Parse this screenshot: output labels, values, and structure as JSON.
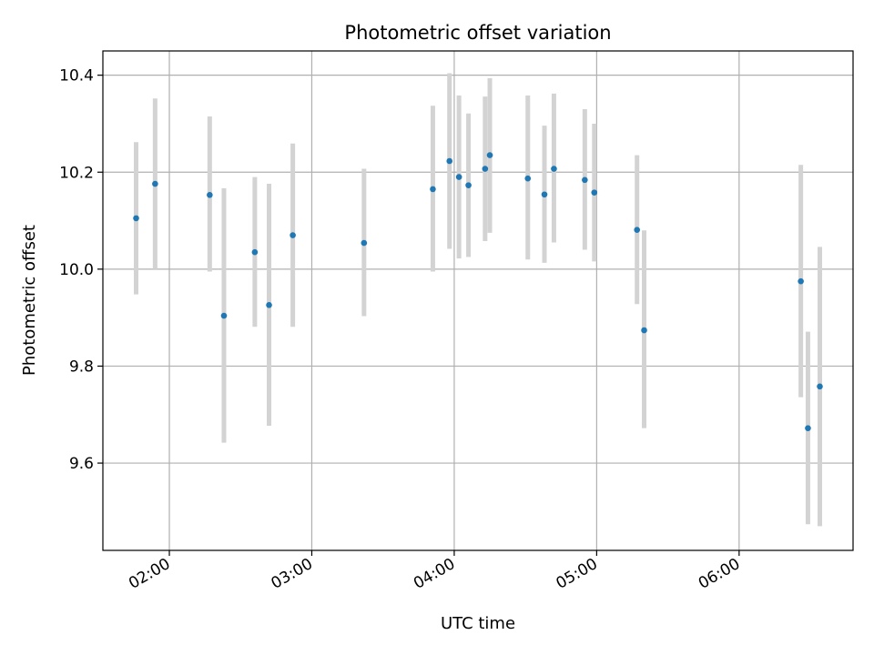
{
  "chart_data": {
    "type": "scatter",
    "title": "Photometric offset variation",
    "xlabel": "UTC time",
    "ylabel": "Photometric offset",
    "x_unit": "UTC hh:mm",
    "xlim": [
      "01:32",
      "06:48"
    ],
    "ylim": [
      9.42,
      10.45
    ],
    "x_ticks": [
      "02:00",
      "03:00",
      "04:00",
      "05:00",
      "06:00"
    ],
    "y_ticks": [
      9.6,
      9.8,
      10.0,
      10.2,
      10.4
    ],
    "grid": true,
    "colors": {
      "points": "#1f77b4",
      "error_bars": "#d3d3d3",
      "grid": "#b0b0b0"
    },
    "series": [
      {
        "points": [
          {
            "x": "01:46",
            "y": 10.105,
            "err_low": 9.948,
            "err_high": 10.262
          },
          {
            "x": "01:54",
            "y": 10.176,
            "err_low": 10.0,
            "err_high": 10.352
          },
          {
            "x": "02:17",
            "y": 10.153,
            "err_low": 9.995,
            "err_high": 10.315
          },
          {
            "x": "02:23",
            "y": 9.904,
            "err_low": 9.642,
            "err_high": 10.167
          },
          {
            "x": "02:36",
            "y": 10.035,
            "err_low": 9.881,
            "err_high": 10.19
          },
          {
            "x": "02:42",
            "y": 9.926,
            "err_low": 9.677,
            "err_high": 10.176
          },
          {
            "x": "02:52",
            "y": 10.07,
            "err_low": 9.881,
            "err_high": 10.259
          },
          {
            "x": "03:22",
            "y": 10.054,
            "err_low": 9.903,
            "err_high": 10.207
          },
          {
            "x": "03:51",
            "y": 10.165,
            "err_low": 9.995,
            "err_high": 10.337
          },
          {
            "x": "03:58",
            "y": 10.223,
            "err_low": 10.042,
            "err_high": 10.404
          },
          {
            "x": "04:02",
            "y": 10.19,
            "err_low": 10.022,
            "err_high": 10.358
          },
          {
            "x": "04:06",
            "y": 10.173,
            "err_low": 10.025,
            "err_high": 10.321
          },
          {
            "x": "04:13",
            "y": 10.207,
            "err_low": 10.058,
            "err_high": 10.356
          },
          {
            "x": "04:15",
            "y": 10.235,
            "err_low": 10.075,
            "err_high": 10.394
          },
          {
            "x": "04:31",
            "y": 10.187,
            "err_low": 10.02,
            "err_high": 10.358
          },
          {
            "x": "04:38",
            "y": 10.154,
            "err_low": 10.013,
            "err_high": 10.296
          },
          {
            "x": "04:42",
            "y": 10.207,
            "err_low": 10.055,
            "err_high": 10.362
          },
          {
            "x": "04:55",
            "y": 10.184,
            "err_low": 10.04,
            "err_high": 10.33
          },
          {
            "x": "04:59",
            "y": 10.158,
            "err_low": 10.016,
            "err_high": 10.3
          },
          {
            "x": "05:17",
            "y": 10.081,
            "err_low": 9.928,
            "err_high": 10.235
          },
          {
            "x": "05:20",
            "y": 9.874,
            "err_low": 9.672,
            "err_high": 10.08
          },
          {
            "x": "06:26",
            "y": 9.975,
            "err_low": 9.736,
            "err_high": 10.215
          },
          {
            "x": "06:29",
            "y": 9.672,
            "err_low": 9.474,
            "err_high": 9.871
          },
          {
            "x": "06:34",
            "y": 9.758,
            "err_low": 9.47,
            "err_high": 10.046
          }
        ]
      }
    ]
  }
}
